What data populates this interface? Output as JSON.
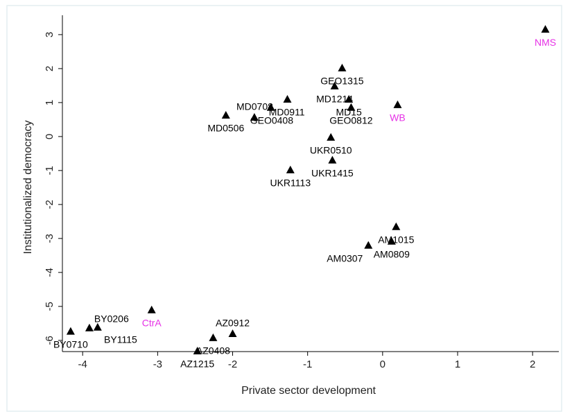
{
  "chart_data": {
    "type": "scatter",
    "x_label": "Private sector development",
    "y_label": "Institutionalized democracy",
    "xlim": [
      -4.27,
      2.35
    ],
    "ylim": [
      -6.33,
      3.57
    ],
    "xticks": [
      -4,
      -3,
      -2,
      -1,
      0,
      1,
      2
    ],
    "yticks": [
      -6,
      -5,
      -4,
      -3,
      -2,
      -1,
      0,
      1,
      2,
      3
    ],
    "color": "#000000",
    "labels": [
      "NMS",
      "GEO1315",
      "MD1214",
      "MD15",
      "GEO0812",
      "WB",
      "MD0708",
      "MD0911",
      "GEO0408",
      "MD0506",
      "UKR0510",
      "UKR1415",
      "UKR1113",
      "AM1015",
      "AM0809",
      "AM0307",
      "CtrA",
      "BY0206",
      "BY1115",
      "BY0710",
      "AZ0912",
      "AZ0408",
      "AZ1215"
    ],
    "x": [
      2.17,
      -0.54,
      -0.64,
      -0.45,
      -0.42,
      0.2,
      -1.27,
      -1.49,
      -1.71,
      -2.09,
      -0.69,
      -0.67,
      -1.23,
      0.18,
      0.12,
      -0.19,
      -3.08,
      -3.8,
      -3.91,
      -4.16,
      -2.0,
      -2.26,
      -2.47
    ],
    "y": [
      3.16,
      2.02,
      1.49,
      1.1,
      0.86,
      0.94,
      1.1,
      0.86,
      0.57,
      0.63,
      -0.02,
      -0.69,
      -0.98,
      -2.65,
      -3.08,
      -3.2,
      -5.1,
      -5.61,
      -5.63,
      -5.73,
      -5.8,
      -5.92,
      -6.31
    ],
    "label_colors": [
      "#e632e6",
      "#000000",
      "#000000",
      "#000000",
      "#000000",
      "#e632e6",
      "#000000",
      "#000000",
      "#000000",
      "#000000",
      "#000000",
      "#000000",
      "#000000",
      "#000000",
      "#000000",
      "#000000",
      "#e632e6",
      "#000000",
      "#000000",
      "#000000",
      "#000000",
      "#000000",
      "#000000"
    ]
  }
}
